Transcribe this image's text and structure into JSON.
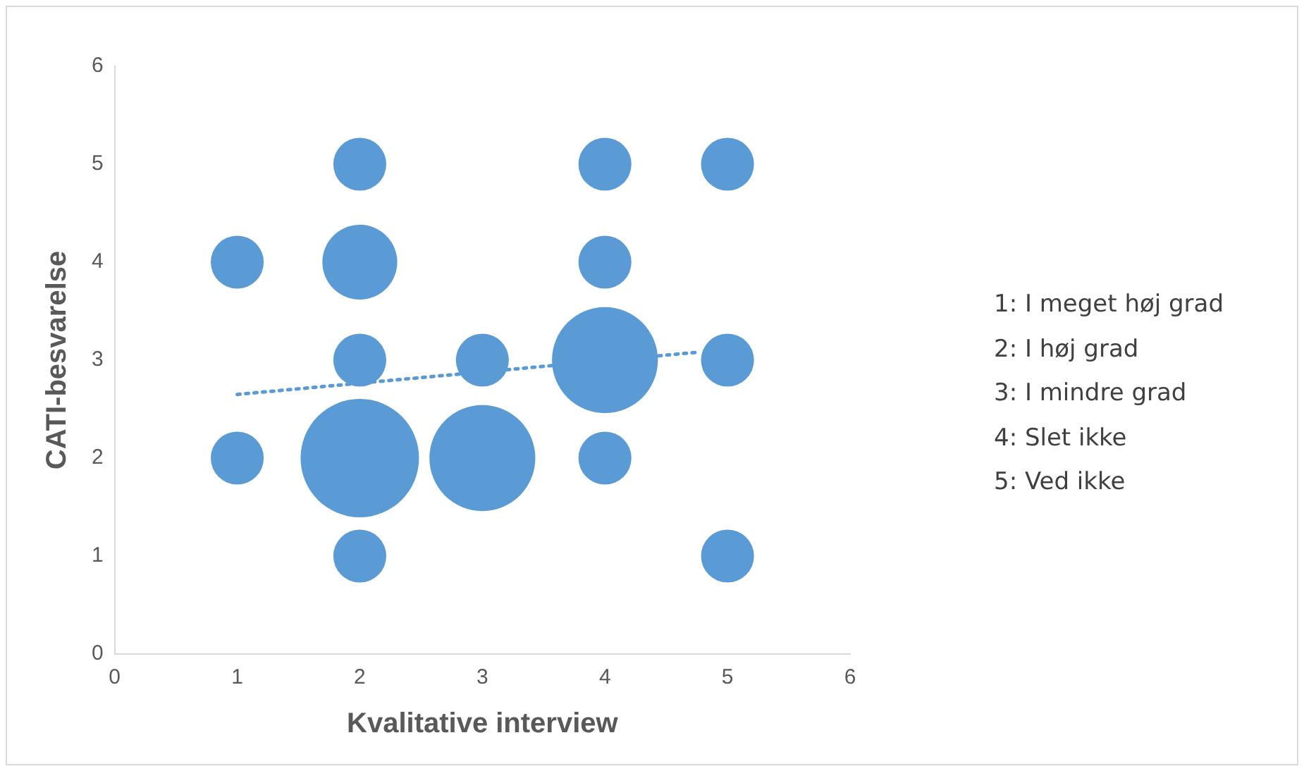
{
  "chart_data": {
    "type": "bubble",
    "xlabel": "Kvalitative interview",
    "ylabel": "CATI-besvarelse",
    "xlim": [
      0,
      6
    ],
    "xticks": [
      0,
      1,
      2,
      3,
      4,
      5,
      6
    ],
    "ylim": [
      0,
      6
    ],
    "yticks": [
      0,
      1,
      2,
      3,
      4,
      5,
      6
    ],
    "grid": false,
    "legend": false,
    "series": [
      {
        "color": "#5b9bd5",
        "x": [
          1,
          1,
          2,
          2,
          2,
          2,
          2,
          3,
          3,
          4,
          4,
          4,
          4,
          5,
          5,
          5
        ],
        "values": [
          4,
          2,
          5,
          4,
          3,
          2,
          1,
          3,
          2,
          5,
          4,
          3,
          2,
          5,
          3,
          1
        ],
        "sizes": [
          0.2,
          0.2,
          0.2,
          0.4,
          0.2,
          1,
          0.2,
          0.2,
          0.8,
          0.2,
          0.2,
          0.8,
          0.2,
          0.2,
          0.2,
          0.2
        ]
      },
      {
        "type": "line",
        "color": "#5b9bd5",
        "x": [
          1,
          4.75
        ],
        "values": [
          2.65,
          3.08
        ],
        "line_style": "dotted",
        "marker": "none"
      }
    ],
    "annotations": [
      "1: I meget høj grad",
      "2: I høj grad",
      "3: I mindre grad",
      "4: Slet ikke",
      "5: Ved ikke"
    ]
  }
}
